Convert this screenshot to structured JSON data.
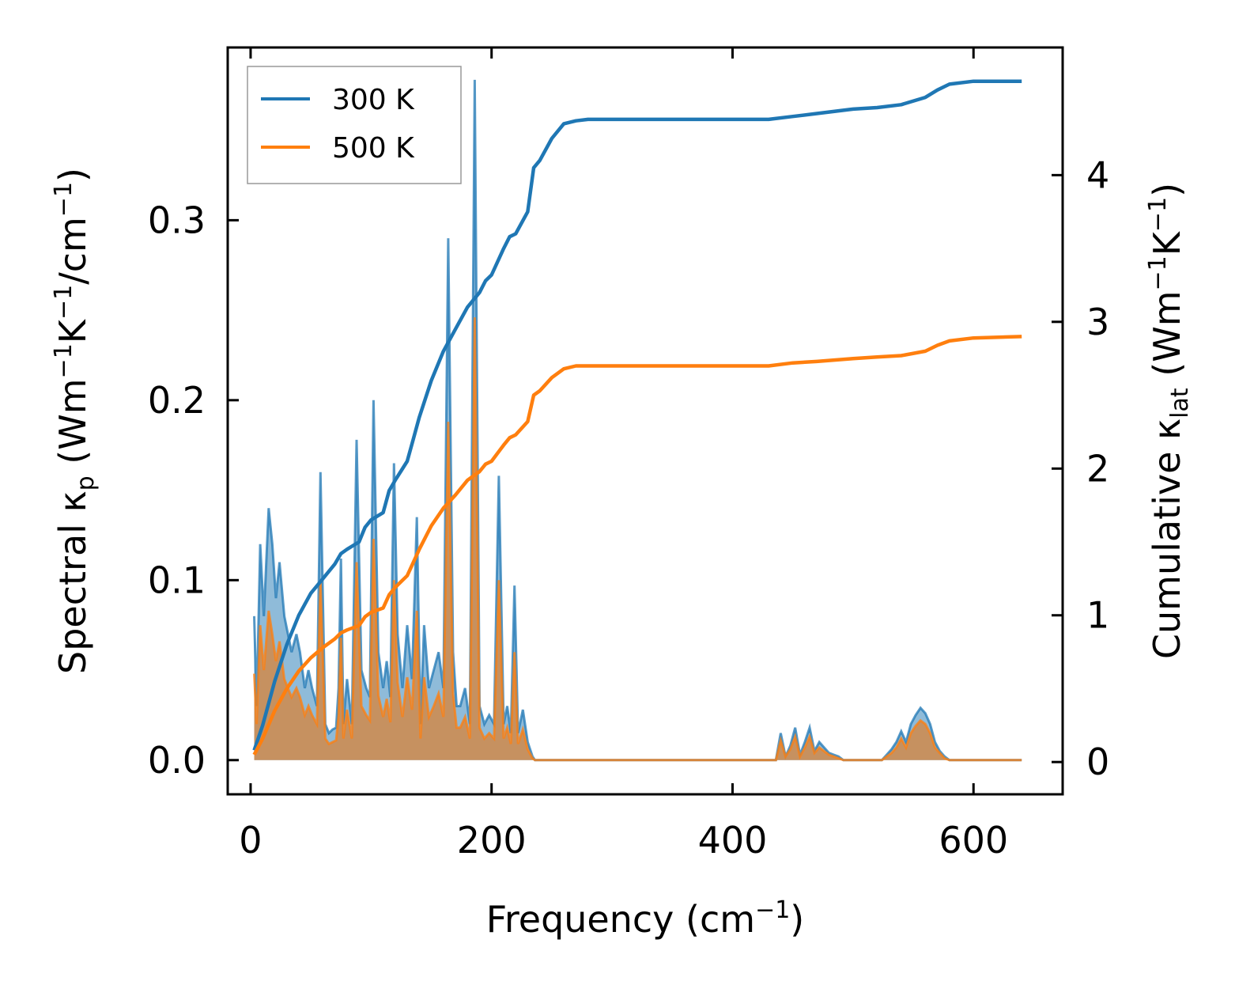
{
  "chart_data": {
    "type": "line",
    "xlabel_parts": {
      "base": "Frequency (cm",
      "sup": "−1",
      "tail": ")"
    },
    "ylabel_left_parts": {
      "pre": "Spectral κ",
      "sub": "p",
      "mid": " (Wm",
      "sup1": "−1",
      "k": "K",
      "sup2": "−1",
      "sep": "/cm",
      "sup3": "−1",
      "tail": ")"
    },
    "ylabel_right_parts": {
      "pre": "Cumulative κ",
      "sub": "lat",
      "mid": " (Wm",
      "sup1": "−1",
      "k": "K",
      "sup2": "−1",
      "tail": ")"
    },
    "xlim": [
      -19,
      674
    ],
    "ylim_left": [
      -0.019,
      0.396
    ],
    "ylim_right": [
      -0.22,
      4.87
    ],
    "xticks": [
      0,
      200,
      400,
      600
    ],
    "xtick_labels": [
      "0",
      "200",
      "400",
      "600"
    ],
    "yticks_left": [
      0.0,
      0.1,
      0.2,
      0.3
    ],
    "ytick_labels_left": [
      "0.0",
      "0.1",
      "0.2",
      "0.3"
    ],
    "yticks_right": [
      0,
      1,
      2,
      3,
      4
    ],
    "ytick_labels_right": [
      "0",
      "1",
      "2",
      "3",
      "4"
    ],
    "legend": {
      "position": "upper-left",
      "entries": [
        "300 K",
        "500 K"
      ]
    },
    "colors": {
      "300K": "#1f77b4",
      "500K": "#ff7f0e",
      "fill300": "#1f77b4",
      "fill500": "#d08a4a"
    },
    "spectral": [
      {
        "name": "300 K",
        "x": [
          3,
          5,
          8,
          11,
          15,
          18,
          21,
          24,
          28,
          31,
          34,
          38,
          41,
          45,
          48,
          51,
          55,
          58,
          62,
          65,
          68,
          71,
          73,
          75,
          77,
          80,
          84,
          88,
          92,
          96,
          99,
          102,
          106,
          110,
          113,
          116,
          119,
          122,
          126,
          130,
          134,
          138,
          141,
          144,
          148,
          152,
          156,
          160,
          164,
          168,
          171,
          174,
          178,
          182,
          186,
          190,
          194,
          198,
          202,
          206,
          210,
          213,
          216,
          219,
          222,
          226,
          230,
          234,
          236,
          238,
          241,
          244,
          248,
          252,
          255,
          258,
          262,
          265,
          268,
          272,
          276,
          280,
          286,
          300,
          400,
          428,
          432,
          436,
          440,
          444,
          448,
          452,
          456,
          460,
          464,
          468,
          472,
          476,
          480,
          484,
          488,
          492,
          496,
          500,
          504,
          510,
          516,
          520,
          524,
          528,
          532,
          536,
          540,
          544,
          548,
          552,
          556,
          560,
          564,
          568,
          572,
          576,
          580,
          584,
          588,
          592,
          596,
          600,
          604,
          608,
          612,
          640
        ],
        "y": [
          0.08,
          0.03,
          0.12,
          0.08,
          0.14,
          0.12,
          0.09,
          0.11,
          0.08,
          0.07,
          0.06,
          0.07,
          0.06,
          0.04,
          0.05,
          0.04,
          0.03,
          0.16,
          0.02,
          0.015,
          0.017,
          0.018,
          0.04,
          0.112,
          0.02,
          0.045,
          0.02,
          0.178,
          0.05,
          0.04,
          0.035,
          0.2,
          0.06,
          0.04,
          0.055,
          0.035,
          0.165,
          0.07,
          0.04,
          0.075,
          0.045,
          0.135,
          0.02,
          0.075,
          0.04,
          0.05,
          0.06,
          0.04,
          0.29,
          0.06,
          0.03,
          0.03,
          0.04,
          0.02,
          0.378,
          0.03,
          0.02,
          0.025,
          0.02,
          0.158,
          0.02,
          0.03,
          0.015,
          0.097,
          0.015,
          0.028,
          0.01,
          0.002,
          0.0,
          0.0,
          0.0,
          0.0,
          0.0,
          0.0,
          0.0,
          0.0,
          0.0,
          0.0,
          0.0,
          0.0,
          0.0,
          0.0,
          0.0,
          0.0,
          0.0,
          0.0,
          0.0,
          0.0,
          0.015,
          0.002,
          0.008,
          0.018,
          0.003,
          0.01,
          0.018,
          0.005,
          0.01,
          0.007,
          0.004,
          0.003,
          0.002,
          0.0,
          0.0,
          0.0,
          0.0,
          0.0,
          0.0,
          0.0,
          0.0,
          0.003,
          0.006,
          0.01,
          0.016,
          0.01,
          0.02,
          0.025,
          0.029,
          0.026,
          0.02,
          0.01,
          0.005,
          0.002,
          0.0,
          0.0,
          0.0,
          0.0,
          0.0,
          0.0,
          0.0,
          0.0,
          0.0,
          0.0
        ]
      },
      {
        "name": "500 K",
        "x": [
          3,
          5,
          8,
          11,
          15,
          18,
          21,
          24,
          28,
          31,
          34,
          38,
          41,
          45,
          48,
          51,
          55,
          58,
          62,
          65,
          68,
          71,
          73,
          75,
          77,
          80,
          84,
          88,
          92,
          96,
          99,
          102,
          106,
          110,
          113,
          116,
          119,
          122,
          126,
          130,
          134,
          138,
          141,
          144,
          148,
          152,
          156,
          160,
          164,
          168,
          171,
          174,
          178,
          182,
          186,
          190,
          194,
          198,
          202,
          206,
          210,
          213,
          216,
          219,
          222,
          226,
          230,
          234,
          236,
          238,
          241,
          244,
          248,
          252,
          255,
          258,
          262,
          265,
          268,
          272,
          276,
          280,
          286,
          300,
          400,
          428,
          432,
          436,
          440,
          444,
          448,
          452,
          456,
          460,
          464,
          468,
          472,
          476,
          480,
          484,
          488,
          492,
          496,
          500,
          504,
          510,
          516,
          520,
          524,
          528,
          532,
          536,
          540,
          544,
          548,
          552,
          556,
          560,
          564,
          568,
          572,
          576,
          580,
          584,
          588,
          592,
          596,
          600,
          604,
          608,
          612,
          640
        ],
        "y": [
          0.048,
          0.02,
          0.075,
          0.05,
          0.083,
          0.07,
          0.055,
          0.066,
          0.045,
          0.04,
          0.035,
          0.04,
          0.035,
          0.025,
          0.03,
          0.025,
          0.02,
          0.1,
          0.012,
          0.009,
          0.01,
          0.011,
          0.025,
          0.068,
          0.012,
          0.028,
          0.012,
          0.11,
          0.03,
          0.025,
          0.022,
          0.123,
          0.036,
          0.024,
          0.034,
          0.021,
          0.1,
          0.043,
          0.024,
          0.046,
          0.028,
          0.083,
          0.012,
          0.046,
          0.024,
          0.03,
          0.037,
          0.024,
          0.188,
          0.037,
          0.018,
          0.018,
          0.024,
          0.012,
          0.246,
          0.018,
          0.012,
          0.015,
          0.012,
          0.1,
          0.012,
          0.018,
          0.009,
          0.06,
          0.009,
          0.017,
          0.006,
          0.001,
          0.0,
          0.0,
          0.0,
          0.0,
          0.0,
          0.0,
          0.0,
          0.0,
          0.0,
          0.0,
          0.0,
          0.0,
          0.0,
          0.0,
          0.0,
          0.0,
          0.0,
          0.0,
          0.0,
          0.0,
          0.011,
          0.002,
          0.006,
          0.013,
          0.002,
          0.007,
          0.013,
          0.004,
          0.007,
          0.005,
          0.003,
          0.002,
          0.001,
          0.0,
          0.0,
          0.0,
          0.0,
          0.0,
          0.0,
          0.0,
          0.0,
          0.002,
          0.004,
          0.007,
          0.012,
          0.007,
          0.015,
          0.019,
          0.022,
          0.02,
          0.015,
          0.007,
          0.004,
          0.001,
          0.0,
          0.0,
          0.0,
          0.0,
          0.0,
          0.0,
          0.0,
          0.0,
          0.0,
          0.0
        ]
      }
    ],
    "cumulative": [
      {
        "name": "300 K",
        "x": [
          3,
          10,
          20,
          30,
          40,
          50,
          60,
          70,
          75,
          80,
          90,
          95,
          100,
          110,
          115,
          120,
          130,
          135,
          140,
          150,
          160,
          170,
          180,
          190,
          195,
          200,
          210,
          215,
          220,
          230,
          235,
          240,
          250,
          260,
          270,
          280,
          300,
          400,
          430,
          450,
          470,
          500,
          520,
          540,
          560,
          570,
          580,
          600,
          640
        ],
        "y": [
          0.08,
          0.25,
          0.55,
          0.8,
          1.0,
          1.15,
          1.25,
          1.35,
          1.42,
          1.45,
          1.5,
          1.6,
          1.65,
          1.7,
          1.85,
          1.92,
          2.05,
          2.2,
          2.35,
          2.6,
          2.8,
          2.95,
          3.1,
          3.2,
          3.28,
          3.32,
          3.5,
          3.58,
          3.6,
          3.75,
          4.05,
          4.1,
          4.25,
          4.35,
          4.37,
          4.38,
          4.38,
          4.38,
          4.38,
          4.4,
          4.42,
          4.45,
          4.46,
          4.48,
          4.53,
          4.58,
          4.62,
          4.64,
          4.64
        ]
      },
      {
        "name": "500 K",
        "x": [
          3,
          10,
          20,
          30,
          40,
          50,
          60,
          70,
          75,
          80,
          90,
          95,
          100,
          110,
          115,
          120,
          130,
          135,
          140,
          150,
          160,
          170,
          180,
          190,
          195,
          200,
          210,
          215,
          220,
          230,
          235,
          240,
          250,
          260,
          270,
          280,
          300,
          400,
          430,
          450,
          470,
          500,
          520,
          540,
          560,
          570,
          580,
          600,
          640
        ],
        "y": [
          0.05,
          0.16,
          0.35,
          0.5,
          0.62,
          0.71,
          0.78,
          0.84,
          0.88,
          0.9,
          0.93,
          0.99,
          1.02,
          1.05,
          1.14,
          1.19,
          1.27,
          1.36,
          1.45,
          1.61,
          1.73,
          1.82,
          1.92,
          1.98,
          2.03,
          2.05,
          2.16,
          2.21,
          2.23,
          2.32,
          2.5,
          2.53,
          2.62,
          2.68,
          2.7,
          2.7,
          2.7,
          2.7,
          2.7,
          2.72,
          2.73,
          2.75,
          2.76,
          2.77,
          2.8,
          2.84,
          2.87,
          2.89,
          2.9
        ]
      }
    ]
  }
}
